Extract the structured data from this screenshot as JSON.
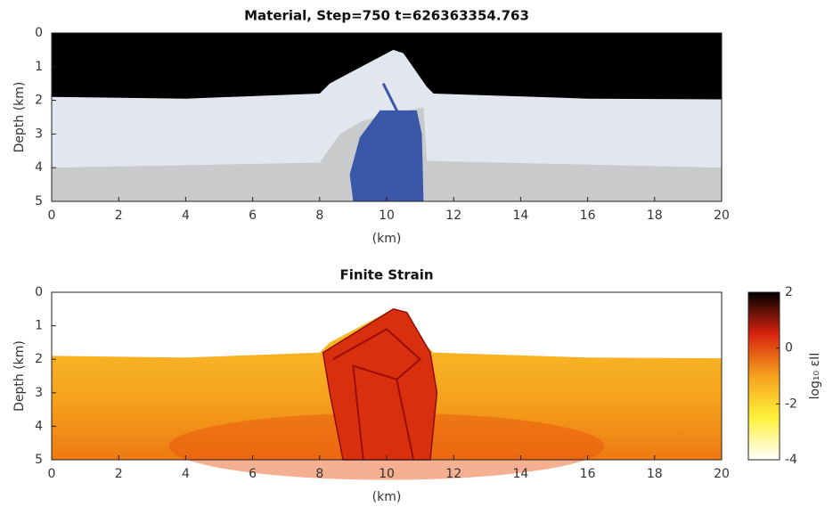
{
  "chart_data": [
    {
      "type": "material",
      "title": "Material, Step=750 t=626363354.763",
      "xlabel": "(km)",
      "ylabel": "Depth (km)",
      "xlim": [
        0,
        20
      ],
      "ylim": [
        5,
        0
      ],
      "xticks": [
        0,
        2,
        4,
        6,
        8,
        10,
        12,
        14,
        16,
        18,
        20
      ],
      "yticks": [
        0,
        1,
        2,
        3,
        4,
        5
      ]
    },
    {
      "type": "strain",
      "title": "Finite Strain",
      "xlabel": "(km)",
      "ylabel": "Depth (km)",
      "xlim": [
        0,
        20
      ],
      "ylim": [
        5,
        0
      ],
      "xticks": [
        0,
        2,
        4,
        6,
        8,
        10,
        12,
        14,
        16,
        18,
        20
      ],
      "yticks": [
        0,
        1,
        2,
        3,
        4,
        5
      ],
      "colorbar": {
        "label": "log₁₀ εII",
        "lim": [
          -4,
          2
        ],
        "ticks": [
          -4,
          -2,
          0,
          2
        ],
        "colormap": [
          "#ffffff",
          "#fff23a",
          "#f6a21e",
          "#d8240e",
          "#000000"
        ]
      }
    }
  ]
}
